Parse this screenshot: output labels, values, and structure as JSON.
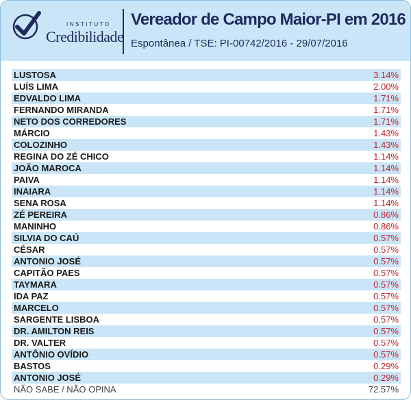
{
  "header": {
    "logo_small": "INSTITUTO",
    "logo_big": "Credibilidade",
    "title": "Vereador de Campo Maior-PI em 2016",
    "subtitle": "Espontânea / TSE: PI-00742/2016 - 29/07/2016"
  },
  "colors": {
    "navy": "#1f2a5c",
    "band": "#c9e5f7",
    "value_red": "#c0252c"
  },
  "chart_data": {
    "type": "table",
    "title": "Vereador de Campo Maior-PI em 2016",
    "subtitle": "Espontânea / TSE: PI-00742/2016 - 29/07/2016",
    "rows": [
      {
        "name": "LUSTOSA",
        "value": "3.14%"
      },
      {
        "name": "LUÍS LIMA",
        "value": "2.00%"
      },
      {
        "name": "EDVALDO LIMA",
        "value": "1.71%"
      },
      {
        "name": "FERNANDO MIRANDA",
        "value": "1.71%"
      },
      {
        "name": "NETO DOS CORREDORES",
        "value": "1.71%"
      },
      {
        "name": "MÁRCIO",
        "value": "1.43%"
      },
      {
        "name": "COLOZINHO",
        "value": "1.43%"
      },
      {
        "name": "REGINA DO ZÉ CHICO",
        "value": "1.14%"
      },
      {
        "name": "JOÃO MAROCA",
        "value": "1.14%"
      },
      {
        "name": "PAIVA",
        "value": "1.14%"
      },
      {
        "name": "INAIARA",
        "value": "1.14%"
      },
      {
        "name": "SENA ROSA",
        "value": "1.14%"
      },
      {
        "name": "ZÉ PEREIRA",
        "value": "0.86%"
      },
      {
        "name": "MANINHO",
        "value": "0.86%"
      },
      {
        "name": "SILVIA DO CAÚ",
        "value": "0.57%"
      },
      {
        "name": "CÉSAR",
        "value": "0.57%"
      },
      {
        "name": "ANTONIO JOSÉ",
        "value": "0.57%"
      },
      {
        "name": "CAPITÃO PAES",
        "value": "0.57%"
      },
      {
        "name": "TAYMARA",
        "value": "0.57%"
      },
      {
        "name": "IDA PAZ",
        "value": "0.57%"
      },
      {
        "name": "MARCELO",
        "value": "0.57%"
      },
      {
        "name": "SARGENTE LISBOA",
        "value": "0.57%"
      },
      {
        "name": "DR. AMILTON REIS",
        "value": "0.57%"
      },
      {
        "name": "DR. VALTER",
        "value": "0.57%"
      },
      {
        "name": "ANTÔNIO OVÍDIO",
        "value": "0.57%"
      },
      {
        "name": "BASTOS",
        "value": "0.29%"
      },
      {
        "name": "ANTONIO JOSÉ",
        "value": "0.29%"
      },
      {
        "name": "NÃO SABE / NÃO OPINA",
        "value": "72.57%"
      }
    ]
  }
}
